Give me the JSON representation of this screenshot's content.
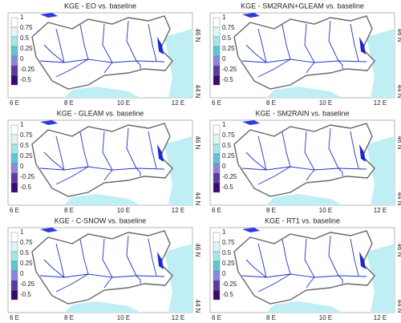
{
  "panels": [
    {
      "title": "KGE - EO vs. baseline"
    },
    {
      "title": "KGE - SM2RAIN+GLEAM vs. baseline"
    },
    {
      "title": "KGE - GLEAM vs. baseline"
    },
    {
      "title": "KGE - SM2RAIN vs. baseline"
    },
    {
      "title": "KGE - C-SNOW vs. baseline"
    },
    {
      "title": "KGE - RT1 vs. baseline"
    }
  ],
  "colorbar": {
    "labels": [
      "1",
      "0.75",
      "0.5",
      "0.25",
      "0",
      "-0.25",
      "-0.5"
    ]
  },
  "lon_labels": [
    "6  E",
    "8  E",
    "10  E",
    "12  E"
  ],
  "lat_labels": [
    "46  N",
    "44  N"
  ]
}
